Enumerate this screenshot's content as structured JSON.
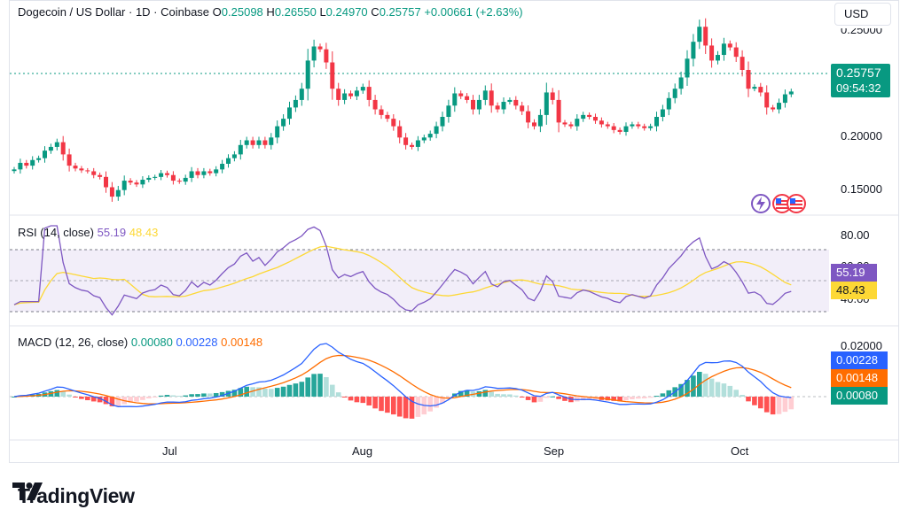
{
  "header": {
    "symbol": "Dogecoin / US Dollar · 1D · Coinbase",
    "open_label": "O",
    "open": "0.25098",
    "high_label": "H",
    "high": "0.26550",
    "low_label": "L",
    "low": "0.24970",
    "close_label": "C",
    "close": "0.25757",
    "change": "+0.00661 (+2.63%)"
  },
  "currency_button": "USD",
  "price_axis": {
    "ticks": [
      "0.25000",
      "0.20000",
      "0.15000"
    ]
  },
  "last_price_tag": {
    "price": "0.25757",
    "countdown": "09:54:32"
  },
  "rsi": {
    "title": "RSI (14, close)",
    "value": "55.19",
    "ma_value": "48.43",
    "ticks": [
      "80.00",
      "60.00",
      "40.00"
    ],
    "tag_value": "55.19",
    "tag_ma": "48.43"
  },
  "macd": {
    "title": "MACD (12, 26, close)",
    "hist": "0.00080",
    "macd": "0.00228",
    "signal": "0.00148",
    "ticks": [
      "0.02000"
    ],
    "tag_macd": "0.00228",
    "tag_signal": "0.00148",
    "tag_hist": "0.00080"
  },
  "x_axis": {
    "labels": [
      "Jul",
      "Aug",
      "Sep",
      "Oct"
    ]
  },
  "brand": {
    "name": "TradingView"
  },
  "colors": {
    "up": "#089981",
    "down": "#f23645",
    "rsi": "#7e57c2",
    "rsi_ma": "#fdd835",
    "macd": "#2962ff",
    "signal": "#ff6d00",
    "hist_up": "#26a69a",
    "hist_up_weak": "#b2dfdb",
    "hist_down": "#ff5252",
    "hist_down_weak": "#ffcdd2"
  },
  "chart_data": {
    "type": "candlestick",
    "symbol": "DOGE/USD",
    "x_labels": [
      "Jul",
      "Aug",
      "Sep",
      "Oct"
    ],
    "closes": [
      0.174,
      0.181,
      0.178,
      0.184,
      0.186,
      0.194,
      0.198,
      0.203,
      0.19,
      0.178,
      0.175,
      0.173,
      0.172,
      0.168,
      0.166,
      0.155,
      0.145,
      0.152,
      0.162,
      0.16,
      0.158,
      0.163,
      0.165,
      0.166,
      0.17,
      0.168,
      0.162,
      0.161,
      0.165,
      0.172,
      0.168,
      0.172,
      0.17,
      0.174,
      0.18,
      0.186,
      0.19,
      0.2,
      0.205,
      0.2,
      0.205,
      0.2,
      0.208,
      0.22,
      0.228,
      0.24,
      0.248,
      0.26,
      0.29,
      0.305,
      0.302,
      0.288,
      0.26,
      0.248,
      0.255,
      0.252,
      0.258,
      0.262,
      0.248,
      0.238,
      0.232,
      0.228,
      0.22,
      0.208,
      0.2,
      0.198,
      0.205,
      0.208,
      0.212,
      0.22,
      0.23,
      0.242,
      0.255,
      0.252,
      0.248,
      0.238,
      0.248,
      0.258,
      0.242,
      0.238,
      0.246,
      0.248,
      0.242,
      0.236,
      0.224,
      0.22,
      0.232,
      0.256,
      0.248,
      0.224,
      0.222,
      0.22,
      0.228,
      0.232,
      0.23,
      0.226,
      0.222,
      0.22,
      0.216,
      0.214,
      0.22,
      0.222,
      0.22,
      0.218,
      0.22,
      0.23,
      0.238,
      0.25,
      0.26,
      0.272,
      0.292,
      0.31,
      0.326,
      0.306,
      0.29,
      0.296,
      0.308,
      0.304,
      0.294,
      0.28,
      0.26,
      0.262,
      0.256,
      0.24,
      0.238,
      0.245,
      0.254,
      0.257
    ],
    "rsi": {
      "value": 55.19,
      "ma": 48.43,
      "range": [
        30,
        90
      ]
    },
    "macd": {
      "macd": 0.00228,
      "signal": 0.00148,
      "hist": 0.0008
    },
    "ylim": [
      0.13,
      0.33
    ]
  }
}
